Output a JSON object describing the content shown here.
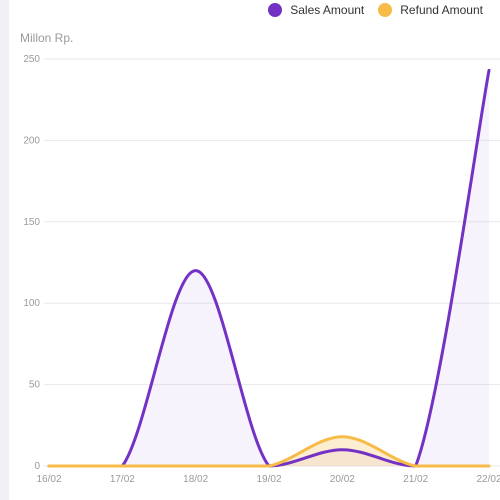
{
  "legend": {
    "sales_label": "Sales Amount",
    "refund_label": "Refund Amount"
  },
  "unit_label": "Millon Rp.",
  "colors": {
    "sales": "#7432c4",
    "refund": "#f7bb48",
    "grid": "#e9e9ee",
    "ticks": "#9a9a9a"
  },
  "chart_data": {
    "type": "line",
    "title": "",
    "ylabel": "Millon Rp.",
    "x": [
      "16/02",
      "17/02",
      "18/02",
      "19/02",
      "20/02",
      "21/02",
      "22/02"
    ],
    "yticks": [
      0,
      50,
      100,
      150,
      200,
      250
    ],
    "ylim": [
      0,
      250
    ],
    "grid": true,
    "legend_position": "top-right",
    "series": [
      {
        "name": "Sales Amount",
        "values": [
          0,
          0,
          120,
          0,
          10,
          0,
          243
        ]
      },
      {
        "name": "Refund Amount",
        "values": [
          0,
          0,
          0,
          0,
          18,
          0,
          0
        ]
      }
    ]
  }
}
